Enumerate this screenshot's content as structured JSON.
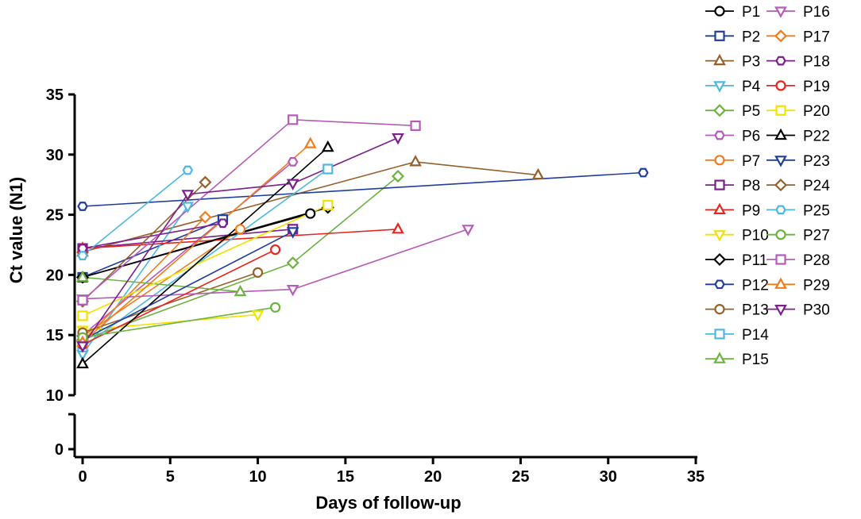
{
  "chart_data": {
    "type": "line",
    "title": "",
    "xlabel": "Days of follow-up",
    "ylabel": "Ct value (N1)",
    "xlim": [
      0,
      35
    ],
    "ylim": [
      10,
      35
    ],
    "y_break": {
      "lower_value": 0,
      "lower_tick": "0"
    },
    "x_ticks": [
      "0",
      "5",
      "10",
      "15",
      "20",
      "25",
      "30",
      "35"
    ],
    "y_ticks": [
      "10",
      "15",
      "20",
      "25",
      "30",
      "35"
    ],
    "legend_position": "right",
    "series": [
      {
        "name": "P1",
        "marker": "circle",
        "color": "#000000",
        "x": [
          0,
          13
        ],
        "y": [
          19.8,
          25.1
        ]
      },
      {
        "name": "P2",
        "marker": "square",
        "color": "#1f3f9a",
        "x": [
          0,
          8
        ],
        "y": [
          19.8,
          24.6
        ]
      },
      {
        "name": "P3",
        "marker": "triangle-up",
        "color": "#96602b",
        "x": [
          0,
          19,
          26
        ],
        "y": [
          21.9,
          29.4,
          28.3
        ]
      },
      {
        "name": "P4",
        "marker": "triangle-down",
        "color": "#4db8e0",
        "x": [
          0,
          6
        ],
        "y": [
          13.4,
          25.7
        ]
      },
      {
        "name": "P5",
        "marker": "diamond",
        "color": "#6cb33f",
        "x": [
          0,
          12,
          18
        ],
        "y": [
          14.6,
          21.0,
          28.2
        ]
      },
      {
        "name": "P6",
        "marker": "hexagon",
        "color": "#b55cb8",
        "x": [
          0,
          12
        ],
        "y": [
          15.0,
          29.4
        ]
      },
      {
        "name": "P7",
        "marker": "circle",
        "color": "#ef7d1f",
        "x": [
          0,
          9
        ],
        "y": [
          14.9,
          23.8
        ]
      },
      {
        "name": "P8",
        "marker": "square",
        "color": "#7a1f8c",
        "x": [
          0,
          12
        ],
        "y": [
          22.2,
          23.8
        ]
      },
      {
        "name": "P9",
        "marker": "triangle-up",
        "color": "#e8251f",
        "x": [
          0,
          18
        ],
        "y": [
          22.2,
          23.8
        ]
      },
      {
        "name": "P10",
        "marker": "triangle-down",
        "color": "#f2e200",
        "x": [
          0,
          10
        ],
        "y": [
          15.4,
          16.7
        ]
      },
      {
        "name": "P11",
        "marker": "diamond",
        "color": "#000000",
        "x": [
          0,
          14
        ],
        "y": [
          19.8,
          25.6
        ]
      },
      {
        "name": "P12",
        "marker": "hexagon",
        "color": "#1f3f9a",
        "x": [
          0,
          32
        ],
        "y": [
          25.7,
          28.5
        ]
      },
      {
        "name": "P13",
        "marker": "circle",
        "color": "#96602b",
        "x": [
          0,
          10
        ],
        "y": [
          15.2,
          20.2
        ]
      },
      {
        "name": "P14",
        "marker": "square",
        "color": "#4db8e0",
        "x": [
          0,
          14
        ],
        "y": [
          14.0,
          28.8
        ]
      },
      {
        "name": "P15",
        "marker": "triangle-up",
        "color": "#6cb33f",
        "x": [
          0,
          9
        ],
        "y": [
          19.8,
          18.6
        ]
      },
      {
        "name": "P16",
        "marker": "triangle-down",
        "color": "#b55cb8",
        "x": [
          0,
          12,
          22
        ],
        "y": [
          18.0,
          18.8,
          23.8
        ]
      },
      {
        "name": "P17",
        "marker": "diamond",
        "color": "#ef7d1f",
        "x": [
          0,
          7
        ],
        "y": [
          14.5,
          24.8
        ]
      },
      {
        "name": "P18",
        "marker": "hexagon",
        "color": "#7a1f8c",
        "x": [
          0,
          8
        ],
        "y": [
          22.2,
          24.3
        ]
      },
      {
        "name": "P19",
        "marker": "circle",
        "color": "#e8251f",
        "x": [
          0,
          11
        ],
        "y": [
          14.2,
          22.1
        ]
      },
      {
        "name": "P20",
        "marker": "square",
        "color": "#f2e200",
        "x": [
          0,
          14
        ],
        "y": [
          16.6,
          25.8
        ]
      },
      {
        "name": "P22",
        "marker": "triangle-up",
        "color": "#000000",
        "x": [
          0,
          14
        ],
        "y": [
          12.6,
          30.6
        ]
      },
      {
        "name": "P23",
        "marker": "triangle-down",
        "color": "#1f3f9a",
        "x": [
          0,
          12
        ],
        "y": [
          14.6,
          23.6
        ]
      },
      {
        "name": "P24",
        "marker": "diamond",
        "color": "#96602b",
        "x": [
          0,
          7
        ],
        "y": [
          17.8,
          27.7
        ]
      },
      {
        "name": "P25",
        "marker": "hexagon",
        "color": "#4db8e0",
        "x": [
          0,
          6
        ],
        "y": [
          21.6,
          28.7
        ]
      },
      {
        "name": "P27",
        "marker": "circle",
        "color": "#6cb33f",
        "x": [
          0,
          11
        ],
        "y": [
          14.8,
          17.3
        ]
      },
      {
        "name": "P28",
        "marker": "square",
        "color": "#b55cb8",
        "x": [
          0,
          12,
          19
        ],
        "y": [
          17.9,
          32.9,
          32.4
        ]
      },
      {
        "name": "P29",
        "marker": "triangle-up",
        "color": "#ef7d1f",
        "x": [
          0,
          13
        ],
        "y": [
          14.4,
          30.9
        ]
      },
      {
        "name": "P30",
        "marker": "triangle-down",
        "color": "#7a1f8c",
        "x": [
          0,
          6,
          12,
          18
        ],
        "y": [
          14.1,
          26.7,
          27.6,
          31.4
        ]
      }
    ]
  }
}
